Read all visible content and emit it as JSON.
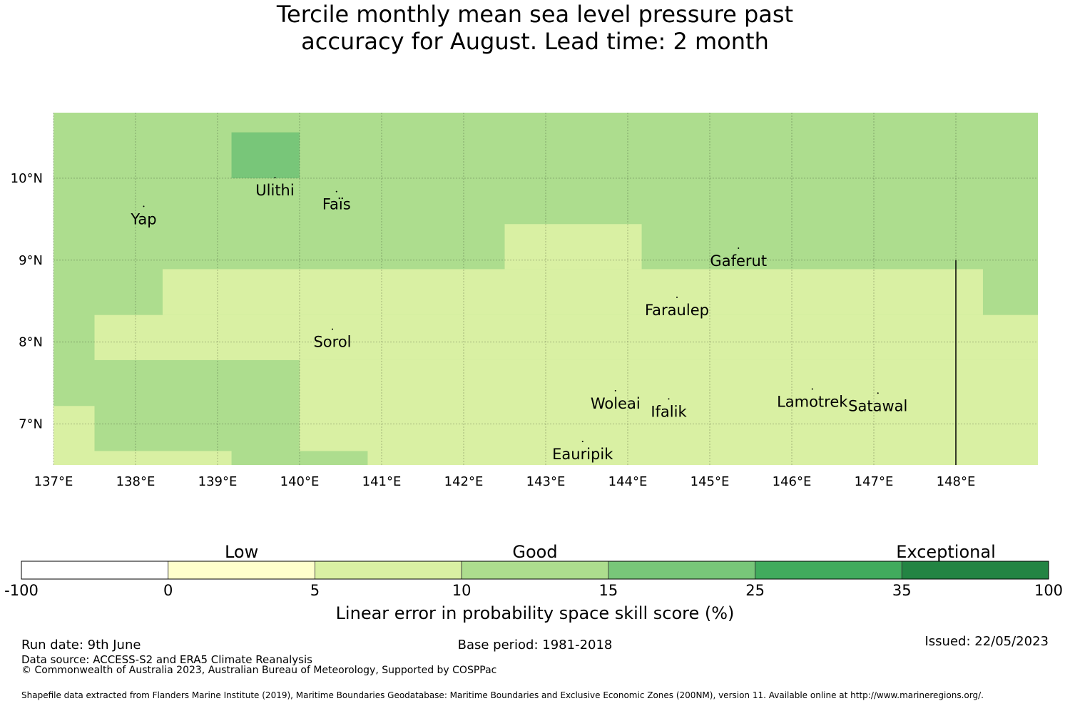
{
  "title": {
    "line1": "Tercile monthly mean sea level pressure past",
    "line2": "accuracy for August. Lead time: 2 month"
  },
  "map": {
    "lon_range": [
      137,
      149
    ],
    "lat_range": [
      6.5,
      10.8
    ],
    "lon_ticks": [
      {
        "value": 137,
        "label": "137°E"
      },
      {
        "value": 138,
        "label": "138°E"
      },
      {
        "value": 139,
        "label": "139°E"
      },
      {
        "value": 140,
        "label": "140°E"
      },
      {
        "value": 141,
        "label": "141°E"
      },
      {
        "value": 142,
        "label": "142°E"
      },
      {
        "value": 143,
        "label": "143°E"
      },
      {
        "value": 144,
        "label": "144°E"
      },
      {
        "value": 145,
        "label": "145°E"
      },
      {
        "value": 146,
        "label": "146°E"
      },
      {
        "value": 147,
        "label": "147°E"
      },
      {
        "value": 148,
        "label": "148°E"
      }
    ],
    "lat_ticks": [
      {
        "value": 10,
        "label": "10°N"
      },
      {
        "value": 9,
        "label": "9°N"
      },
      {
        "value": 8,
        "label": "8°N"
      },
      {
        "value": 7,
        "label": "7°N"
      }
    ],
    "default_skill_category": "10-15",
    "skill_regions": [
      {
        "category": "15-25",
        "lon": [
          139.17,
          140.0
        ],
        "lat": [
          10.0,
          10.56
        ]
      },
      {
        "category": "5-10",
        "lon": [
          142.5,
          144.17
        ],
        "lat": [
          8.89,
          9.44
        ]
      },
      {
        "category": "5-10",
        "lon": [
          138.33,
          148.33
        ],
        "lat": [
          8.33,
          8.89
        ]
      },
      {
        "category": "5-10",
        "lon": [
          137.5,
          149.0
        ],
        "lat": [
          7.78,
          8.33
        ]
      },
      {
        "category": "5-10",
        "lon": [
          140.0,
          149.0
        ],
        "lat": [
          6.5,
          7.78
        ]
      },
      {
        "category": "5-10",
        "lon": [
          137.0,
          137.5
        ],
        "lat": [
          6.5,
          7.22
        ]
      },
      {
        "category": "5-10",
        "lon": [
          137.5,
          139.17
        ],
        "lat": [
          6.5,
          6.67
        ]
      },
      {
        "category": "10-15",
        "lon": [
          140.0,
          140.83
        ],
        "lat": [
          6.5,
          6.67
        ]
      }
    ],
    "boundary_line": {
      "lon": 148.0,
      "lat": [
        6.5,
        9.0
      ]
    },
    "places": [
      {
        "name": "Yap",
        "lon": 138.1,
        "lat": 9.5
      },
      {
        "name": "Ulithi",
        "lon": 139.7,
        "lat": 9.85
      },
      {
        "name": "Faïs",
        "lon": 140.45,
        "lat": 9.68
      },
      {
        "name": "Gaferut",
        "lon": 145.35,
        "lat": 8.99
      },
      {
        "name": "Faraulep",
        "lon": 144.6,
        "lat": 8.39
      },
      {
        "name": "Sorol",
        "lon": 140.4,
        "lat": 8.0
      },
      {
        "name": "Woleai",
        "lon": 143.85,
        "lat": 7.25
      },
      {
        "name": "Ifalik",
        "lon": 144.5,
        "lat": 7.15
      },
      {
        "name": "Lamotrek",
        "lon": 146.25,
        "lat": 7.27
      },
      {
        "name": "Satawal",
        "lon": 147.05,
        "lat": 7.22
      },
      {
        "name": "Eauripik",
        "lon": 143.45,
        "lat": 6.63
      }
    ]
  },
  "colorbar": {
    "categories": [
      "Low",
      "Good",
      "Exceptional"
    ],
    "bins": [
      {
        "range": "-100-0",
        "color": "#ffffff"
      },
      {
        "range": "0-5",
        "color": "#ffffcc"
      },
      {
        "range": "5-10",
        "color": "#d9f0a3"
      },
      {
        "range": "10-15",
        "color": "#addd8e"
      },
      {
        "range": "15-25",
        "color": "#78c679"
      },
      {
        "range": "25-35",
        "color": "#41ab5d"
      },
      {
        "range": "35-100",
        "color": "#238443"
      }
    ],
    "tick_labels": [
      "-100",
      "0",
      "5",
      "10",
      "15",
      "25",
      "35",
      "100"
    ],
    "label": "Linear error in probability space skill score (%)"
  },
  "footer": {
    "run_date": "Run date: 9th June",
    "base_period": "Base period: 1981-2018",
    "issued": "Issued: 22/05/2023",
    "data_source": "Data source: ACCESS-S2 and ERA5 Climate Reanalysis",
    "copyright": "© Commonwealth of Australia 2023, Australian Bureau of Meteorology, Supported by COSPPac",
    "shapefile": "Shapefile data extracted from Flanders Marine Institute (2019), Maritime Boundaries Geodatabase: Maritime Boundaries and Exclusive Economic Zones (200NM), version 11. Available online at http://www.marineregions.org/."
  }
}
